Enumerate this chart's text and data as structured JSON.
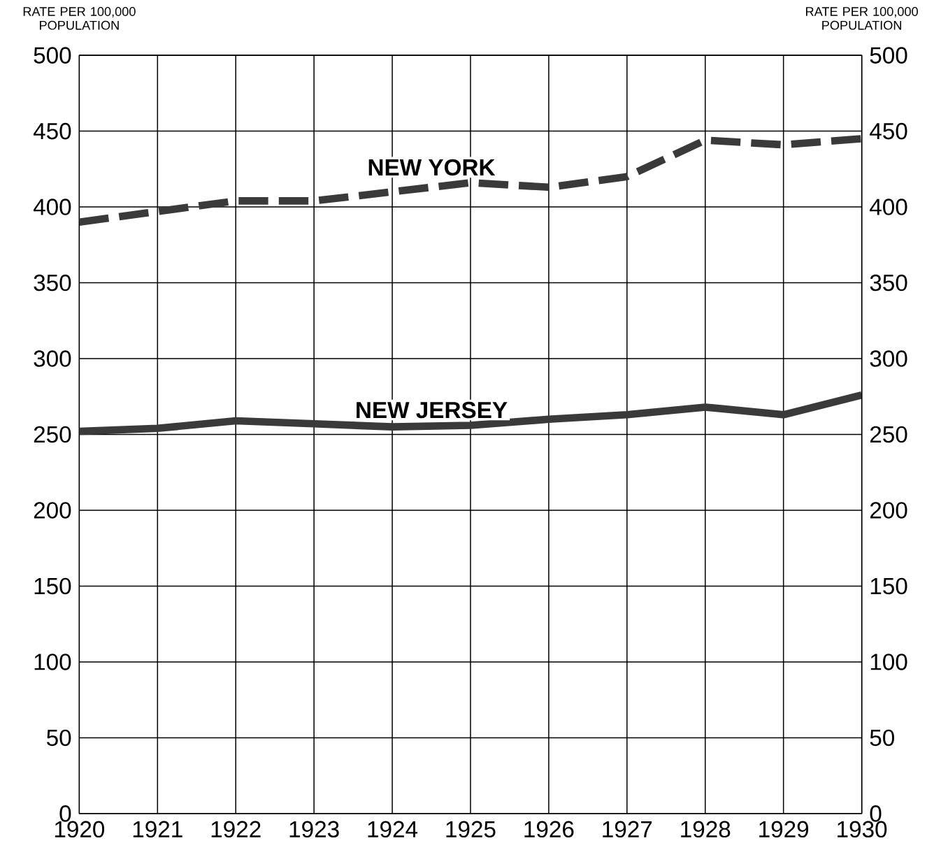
{
  "chart_data": {
    "type": "line",
    "ylabel": "RATE PER 100,000 POPULATION",
    "y2label": "RATE PER 100,000 POPULATION",
    "x": [
      1920,
      1921,
      1922,
      1923,
      1924,
      1925,
      1926,
      1927,
      1928,
      1929,
      1930
    ],
    "series": [
      {
        "name": "NEW YORK",
        "color": "#3a3a3a",
        "line_style": "dashed",
        "values": [
          390,
          397,
          404,
          404,
          410,
          416,
          413,
          420,
          444,
          441,
          445
        ]
      },
      {
        "name": "NEW JERSEY",
        "color": "#3a3a3a",
        "line_style": "solid",
        "values": [
          252,
          254,
          259,
          257,
          255,
          256,
          260,
          263,
          268,
          263,
          276
        ]
      }
    ],
    "xlim": [
      1920,
      1930
    ],
    "xticks": [
      1920,
      1921,
      1922,
      1923,
      1924,
      1925,
      1926,
      1927,
      1928,
      1929,
      1930
    ],
    "ylim": [
      0,
      500
    ],
    "yticks": [
      0,
      50,
      100,
      150,
      200,
      250,
      300,
      350,
      400,
      450,
      500
    ],
    "y2lim": [
      0,
      500
    ],
    "y2ticks": [
      0,
      50,
      100,
      150,
      200,
      250,
      300,
      350,
      400,
      450,
      500
    ],
    "grid": true,
    "marker": "none"
  }
}
